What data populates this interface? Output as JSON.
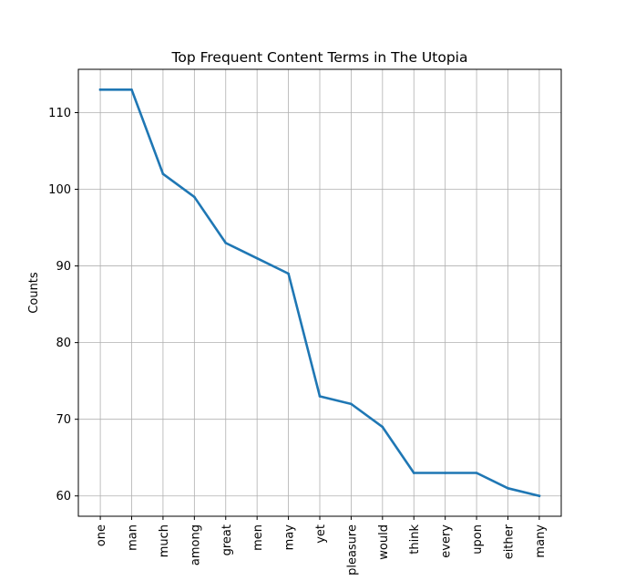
{
  "chart_data": {
    "type": "line",
    "title": "Top Frequent Content Terms in The Utopia",
    "xlabel": "",
    "ylabel": "Counts",
    "categories": [
      "one",
      "man",
      "much",
      "among",
      "great",
      "men",
      "may",
      "yet",
      "pleasure",
      "would",
      "think",
      "every",
      "upon",
      "either",
      "many"
    ],
    "series": [
      {
        "values": [
          113,
          113,
          102,
          99,
          93,
          91,
          89,
          73,
          72,
          69,
          63,
          63,
          63,
          61,
          60
        ],
        "color": "#1f77b4"
      }
    ],
    "ylim": [
      57.35,
      115.65
    ],
    "yticks": [
      60,
      70,
      80,
      90,
      100,
      110
    ],
    "grid": true,
    "x_tick_rotation": "vertical"
  }
}
